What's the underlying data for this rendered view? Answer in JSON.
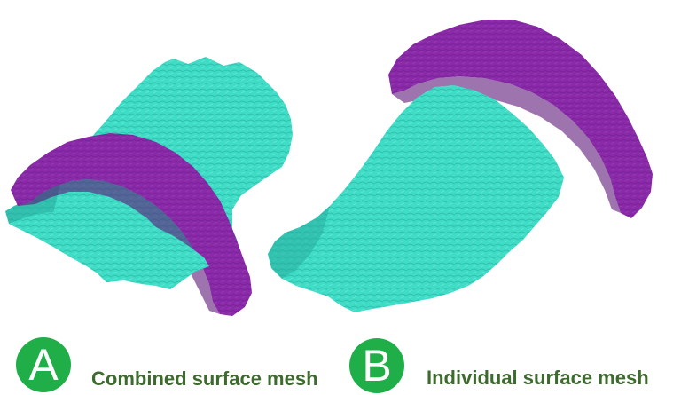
{
  "colors": {
    "badge_green": "#1fae48",
    "caption_green": "#3d6b2e",
    "mesh_cyan": "#3fdcc6",
    "mesh_cyan_shadow": "#26a89a",
    "mesh_purple": "#8a2aa8",
    "mesh_purple_shadow": "#5e1778"
  },
  "panels": [
    {
      "letter": "A",
      "caption": "Combined surface mesh"
    },
    {
      "letter": "B",
      "caption": "Individual surface mesh"
    }
  ]
}
